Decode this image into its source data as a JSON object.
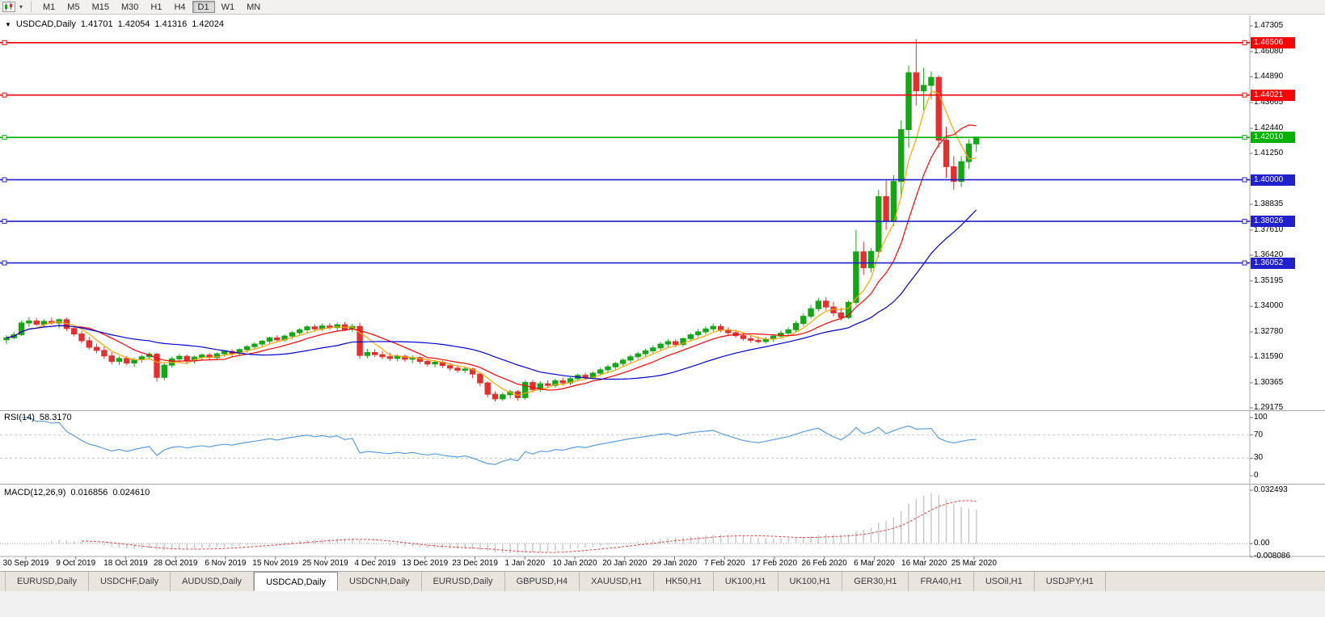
{
  "toolbar": {
    "timeframes": [
      "M1",
      "M5",
      "M15",
      "M30",
      "H1",
      "H4",
      "D1",
      "W1",
      "MN"
    ],
    "active_timeframe": "D1"
  },
  "chart": {
    "marker": "▼",
    "symbol_period": "USDCAD,Daily",
    "open": "1.41701",
    "high": "1.42054",
    "low": "1.41316",
    "close": "1.42024"
  },
  "price_axis": {
    "labels": [
      "1.47305",
      "1.46080",
      "1.44890",
      "1.43665",
      "1.42440",
      "1.41250",
      "1.40000",
      "1.38835",
      "1.37610",
      "1.36420",
      "1.35195",
      "1.34000",
      "1.32780",
      "1.31590",
      "1.30365",
      "1.29175"
    ]
  },
  "rsi": {
    "name": "RSI(14)",
    "value": "58.3170",
    "axis": [
      "100",
      "70",
      "30",
      "0"
    ],
    "levels": [
      70,
      30
    ],
    "line_color": "#4D96D9"
  },
  "macd": {
    "name": "MACD(12,26,9)",
    "value_main": "0.016856",
    "value_signal": "0.024610",
    "axis": [
      {
        "label": "0.032493",
        "value": 0.032493
      },
      {
        "label": "0.00",
        "value": 0
      },
      {
        "label": "-0.008086",
        "value": -0.008086
      }
    ],
    "histogram_color": "#C6C6C6",
    "signal_color": "#E04040"
  },
  "date_axis": {
    "labels": [
      "30 Sep 2019",
      "9 Oct 2019",
      "18 Oct 2019",
      "28 Oct 2019",
      "6 Nov 2019",
      "15 Nov 2019",
      "25 Nov 2019",
      "4 Dec 2019",
      "13 Dec 2019",
      "23 Dec 2019",
      "1 Jan 2020",
      "10 Jan 2020",
      "20 Jan 2020",
      "29 Jan 2020",
      "7 Feb 2020",
      "17 Feb 2020",
      "26 Feb 2020",
      "6 Mar 2020",
      "16 Mar 2020",
      "25 Mar 2020"
    ]
  },
  "tabs": {
    "active_index": 3,
    "items": [
      "EURUSD,Daily",
      "USDCHF,Daily",
      "AUDUSD,Daily",
      "USDCAD,Daily",
      "USDCNH,Daily",
      "EURUSD,Daily",
      "GBPUSD,H4",
      "XAUUSD,H1",
      "HK50,H1",
      "UK100,H1",
      "UK100,H1",
      "GER30,H1",
      "FRA40,H1",
      "USOil,H1",
      "USDJPY,H1"
    ]
  },
  "chart_data": {
    "type": "candlestick",
    "symbol": "USDCAD",
    "period": "Daily",
    "visible_price_range": [
      1.29175,
      1.47305
    ],
    "last_ohlc": {
      "open": 1.41701,
      "high": 1.42054,
      "low": 1.41316,
      "close": 1.42024
    },
    "colors": {
      "bull": "#16A516",
      "bear": "#E03030"
    },
    "moving_averages": [
      {
        "name": "fast-ma",
        "period": 5,
        "color": "#FFA500"
      },
      {
        "name": "medium-ma",
        "period": 10,
        "color": "#FF0000"
      },
      {
        "name": "slow-ma",
        "period": 25,
        "color": "#0000CD"
      }
    ],
    "hlines": [
      {
        "price": 1.46506,
        "label": "1.46506",
        "color": "#FF0000"
      },
      {
        "price": 1.44021,
        "label": "1.44021",
        "color": "#FF0000"
      },
      {
        "price": 1.4201,
        "label": "1.42010",
        "color": "#00B200"
      },
      {
        "price": 1.4,
        "label": "1.40000",
        "color": "#2020CC"
      },
      {
        "price": 1.38026,
        "label": "1.38026",
        "color": "#2020CC"
      },
      {
        "price": 1.36052,
        "label": "1.36052",
        "color": "#2020CC"
      }
    ],
    "indicators": [
      {
        "name": "RSI",
        "params": "14",
        "current": 58.317,
        "levels": [
          70,
          30
        ],
        "range": [
          0,
          100
        ]
      },
      {
        "name": "MACD",
        "params": "12,26,9",
        "current_main": 0.016856,
        "current_signal": 0.02461,
        "axis_max": 0.032493,
        "axis_min": -0.008086
      }
    ],
    "candles": [
      [
        1.324,
        1.3262,
        1.322,
        1.325
      ],
      [
        1.325,
        1.3278,
        1.3242,
        1.3265
      ],
      [
        1.3265,
        1.3332,
        1.3258,
        1.332
      ],
      [
        1.332,
        1.3348,
        1.3302,
        1.333
      ],
      [
        1.333,
        1.3344,
        1.3306,
        1.3314
      ],
      [
        1.3314,
        1.3338,
        1.33,
        1.3328
      ],
      [
        1.3328,
        1.3346,
        1.3312,
        1.332
      ],
      [
        1.332,
        1.3342,
        1.3295,
        1.3336
      ],
      [
        1.3336,
        1.3346,
        1.3282,
        1.3294
      ],
      [
        1.3294,
        1.3306,
        1.3256,
        1.3268
      ],
      [
        1.3268,
        1.3282,
        1.3224,
        1.3236
      ],
      [
        1.3236,
        1.3254,
        1.3194,
        1.3205
      ],
      [
        1.3205,
        1.3222,
        1.3176,
        1.319
      ],
      [
        1.319,
        1.3208,
        1.315,
        1.3164
      ],
      [
        1.3164,
        1.3182,
        1.3124,
        1.3138
      ],
      [
        1.3138,
        1.3162,
        1.312,
        1.3152
      ],
      [
        1.3152,
        1.3164,
        1.312,
        1.313
      ],
      [
        1.313,
        1.3155,
        1.3112,
        1.3146
      ],
      [
        1.3146,
        1.317,
        1.3132,
        1.316
      ],
      [
        1.316,
        1.3182,
        1.3146,
        1.3172
      ],
      [
        1.3172,
        1.318,
        1.3042,
        1.3062
      ],
      [
        1.3062,
        1.3132,
        1.3048,
        1.312
      ],
      [
        1.312,
        1.316,
        1.3108,
        1.315
      ],
      [
        1.315,
        1.3172,
        1.3136,
        1.3162
      ],
      [
        1.3162,
        1.317,
        1.313,
        1.3142
      ],
      [
        1.3142,
        1.3166,
        1.3128,
        1.3158
      ],
      [
        1.3158,
        1.3176,
        1.3142,
        1.3168
      ],
      [
        1.3168,
        1.3178,
        1.3144,
        1.3156
      ],
      [
        1.3156,
        1.318,
        1.3146,
        1.3174
      ],
      [
        1.3174,
        1.3192,
        1.316,
        1.3185
      ],
      [
        1.3185,
        1.3196,
        1.3162,
        1.3176
      ],
      [
        1.3176,
        1.32,
        1.3164,
        1.3194
      ],
      [
        1.3194,
        1.3215,
        1.318,
        1.3208
      ],
      [
        1.3208,
        1.3228,
        1.3194,
        1.322
      ],
      [
        1.322,
        1.324,
        1.3206,
        1.3234
      ],
      [
        1.3234,
        1.3256,
        1.322,
        1.325
      ],
      [
        1.325,
        1.3262,
        1.3228,
        1.324
      ],
      [
        1.324,
        1.3266,
        1.323,
        1.3258
      ],
      [
        1.3258,
        1.3282,
        1.3244,
        1.3274
      ],
      [
        1.3274,
        1.3296,
        1.326,
        1.3288
      ],
      [
        1.3288,
        1.331,
        1.3274,
        1.3302
      ],
      [
        1.3302,
        1.3314,
        1.328,
        1.3292
      ],
      [
        1.3292,
        1.3318,
        1.3282,
        1.3306
      ],
      [
        1.3306,
        1.332,
        1.3288,
        1.3298
      ],
      [
        1.3298,
        1.3322,
        1.3286,
        1.3312
      ],
      [
        1.3312,
        1.3324,
        1.3282,
        1.329
      ],
      [
        1.329,
        1.3316,
        1.3278,
        1.3304
      ],
      [
        1.3304,
        1.3322,
        1.315,
        1.3166
      ],
      [
        1.3166,
        1.3198,
        1.3152,
        1.318
      ],
      [
        1.318,
        1.3196,
        1.3158,
        1.317
      ],
      [
        1.317,
        1.3186,
        1.3148,
        1.316
      ],
      [
        1.316,
        1.3178,
        1.314,
        1.3152
      ],
      [
        1.3152,
        1.3172,
        1.3138,
        1.3162
      ],
      [
        1.3162,
        1.317,
        1.3136,
        1.3148
      ],
      [
        1.3148,
        1.3166,
        1.313,
        1.3156
      ],
      [
        1.3156,
        1.3162,
        1.3126,
        1.3138
      ],
      [
        1.3138,
        1.315,
        1.3114,
        1.3126
      ],
      [
        1.3126,
        1.3144,
        1.311,
        1.3134
      ],
      [
        1.3134,
        1.3142,
        1.3106,
        1.3118
      ],
      [
        1.3118,
        1.313,
        1.3094,
        1.3106
      ],
      [
        1.3106,
        1.312,
        1.3084,
        1.3096
      ],
      [
        1.3096,
        1.3114,
        1.3082,
        1.3102
      ],
      [
        1.3102,
        1.3108,
        1.3058,
        1.3078
      ],
      [
        1.3078,
        1.3086,
        1.302,
        1.3036
      ],
      [
        1.3036,
        1.3044,
        1.2968,
        1.2982
      ],
      [
        1.2982,
        1.2996,
        1.2948,
        1.296
      ],
      [
        1.296,
        1.299,
        1.295,
        1.298
      ],
      [
        1.298,
        1.3004,
        1.2962,
        1.2994
      ],
      [
        1.2994,
        1.3002,
        1.2952,
        1.2966
      ],
      [
        1.2966,
        1.3048,
        1.2956,
        1.3038
      ],
      [
        1.3038,
        1.305,
        1.299,
        1.3004
      ],
      [
        1.3004,
        1.3044,
        1.2992,
        1.3032
      ],
      [
        1.3032,
        1.3048,
        1.3012,
        1.3024
      ],
      [
        1.3024,
        1.3056,
        1.3014,
        1.3046
      ],
      [
        1.3046,
        1.306,
        1.3022,
        1.3036
      ],
      [
        1.3036,
        1.3064,
        1.3026,
        1.3056
      ],
      [
        1.3056,
        1.308,
        1.3044,
        1.3072
      ],
      [
        1.3072,
        1.3084,
        1.305,
        1.3062
      ],
      [
        1.3062,
        1.309,
        1.3052,
        1.3082
      ],
      [
        1.3082,
        1.3108,
        1.307,
        1.3098
      ],
      [
        1.3098,
        1.3122,
        1.3086,
        1.3112
      ],
      [
        1.3112,
        1.3136,
        1.31,
        1.3128
      ],
      [
        1.3128,
        1.3152,
        1.3116,
        1.3144
      ],
      [
        1.3144,
        1.317,
        1.3132,
        1.316
      ],
      [
        1.316,
        1.3184,
        1.3148,
        1.3174
      ],
      [
        1.3174,
        1.3198,
        1.3162,
        1.3188
      ],
      [
        1.3188,
        1.3214,
        1.3176,
        1.3202
      ],
      [
        1.3202,
        1.323,
        1.319,
        1.322
      ],
      [
        1.322,
        1.3244,
        1.3204,
        1.3232
      ],
      [
        1.3232,
        1.3242,
        1.3206,
        1.3218
      ],
      [
        1.3218,
        1.3252,
        1.3208,
        1.3246
      ],
      [
        1.3246,
        1.3272,
        1.3234,
        1.3264
      ],
      [
        1.3264,
        1.3292,
        1.3252,
        1.3278
      ],
      [
        1.3278,
        1.3304,
        1.3266,
        1.3292
      ],
      [
        1.3292,
        1.3318,
        1.328,
        1.3304
      ],
      [
        1.3304,
        1.3316,
        1.3276,
        1.3288
      ],
      [
        1.3288,
        1.33,
        1.3262,
        1.3274
      ],
      [
        1.3274,
        1.3288,
        1.325,
        1.326
      ],
      [
        1.326,
        1.3274,
        1.3236,
        1.3246
      ],
      [
        1.3246,
        1.326,
        1.3226,
        1.3238
      ],
      [
        1.3238,
        1.3256,
        1.3224,
        1.3232
      ],
      [
        1.3232,
        1.3254,
        1.3222,
        1.3244
      ],
      [
        1.3244,
        1.3268,
        1.3232,
        1.3258
      ],
      [
        1.3258,
        1.3284,
        1.3246,
        1.3272
      ],
      [
        1.3272,
        1.33,
        1.326,
        1.3288
      ],
      [
        1.3288,
        1.333,
        1.3278,
        1.3318
      ],
      [
        1.3318,
        1.3366,
        1.3306,
        1.3352
      ],
      [
        1.3352,
        1.3406,
        1.334,
        1.3388
      ],
      [
        1.3388,
        1.3438,
        1.3376,
        1.3424
      ],
      [
        1.3424,
        1.3444,
        1.338,
        1.3396
      ],
      [
        1.3396,
        1.342,
        1.3352,
        1.3368
      ],
      [
        1.3368,
        1.3392,
        1.3332,
        1.3346
      ],
      [
        1.3346,
        1.3428,
        1.3338,
        1.3418
      ],
      [
        1.3418,
        1.3762,
        1.3406,
        1.3658
      ],
      [
        1.3658,
        1.3706,
        1.3548,
        1.3582
      ],
      [
        1.3582,
        1.3676,
        1.356,
        1.366
      ],
      [
        1.366,
        1.3952,
        1.3632,
        1.392
      ],
      [
        1.392,
        1.3996,
        1.3762,
        1.3802
      ],
      [
        1.3802,
        1.4022,
        1.378,
        1.3992
      ],
      [
        1.3992,
        1.4282,
        1.3922,
        1.4238
      ],
      [
        1.4238,
        1.4542,
        1.4152,
        1.4508
      ],
      [
        1.4508,
        1.4668,
        1.4352,
        1.4422
      ],
      [
        1.4422,
        1.4532,
        1.433,
        1.4448
      ],
      [
        1.4448,
        1.4514,
        1.4382,
        1.4486
      ],
      [
        1.4486,
        1.4496,
        1.4152,
        1.4188
      ],
      [
        1.4188,
        1.4252,
        1.4008,
        1.4062
      ],
      [
        1.4062,
        1.4112,
        1.3952,
        1.3992
      ],
      [
        1.3992,
        1.4112,
        1.3966,
        1.4086
      ],
      [
        1.4086,
        1.4192,
        1.4052,
        1.417
      ],
      [
        1.41701,
        1.42054,
        1.41316,
        1.42024
      ]
    ]
  }
}
